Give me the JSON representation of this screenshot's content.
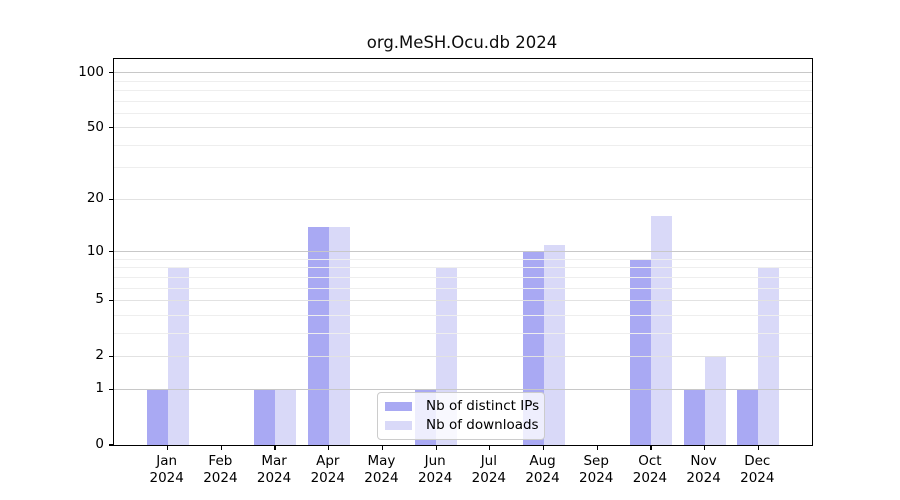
{
  "figure": {
    "background": "#ffffff"
  },
  "chart_data": {
    "type": "bar",
    "title": "org.MeSH.Ocu.db 2024",
    "categories": [
      "Jan",
      "Feb",
      "Mar",
      "Apr",
      "May",
      "Jun",
      "Jul",
      "Aug",
      "Sep",
      "Oct",
      "Nov",
      "Dec"
    ],
    "year_label": "2024",
    "series": [
      {
        "name": "Nb of distinct IPs",
        "color": "#a9a9f3",
        "values": [
          1,
          0,
          1,
          14,
          0,
          1,
          0,
          10,
          0,
          9,
          1,
          1
        ]
      },
      {
        "name": "Nb of downloads",
        "color": "#d9d9f8",
        "values": [
          8,
          0,
          1,
          14,
          0,
          8,
          0,
          11,
          0,
          16,
          2,
          8
        ]
      }
    ],
    "xlabel": "",
    "ylabel": "",
    "y_axis": {
      "scale": "log10(value+1)",
      "tick_values": [
        0,
        1,
        2,
        5,
        10,
        20,
        50,
        100
      ],
      "major_gridlines": [
        1,
        10,
        100
      ],
      "mid_gridlines": [
        2,
        5,
        20,
        50
      ],
      "minor_gridlines": [
        3,
        4,
        6,
        7,
        8,
        9,
        30,
        40,
        60,
        70,
        80,
        90
      ],
      "range_top_value": 119,
      "max_log": 2.078
    },
    "grid": true,
    "legend": {
      "position": "lower-center"
    },
    "colors": {
      "bar_distinct_ips": "#a9a9f3",
      "bar_downloads": "#d9d9f8",
      "gridline_major": "#c8c8c8",
      "gridline_mid": "#e2e2e2",
      "gridline_minor": "#eeeeee",
      "axis": "#000000",
      "text": "#000000",
      "legend_border": "#cccccc"
    }
  }
}
